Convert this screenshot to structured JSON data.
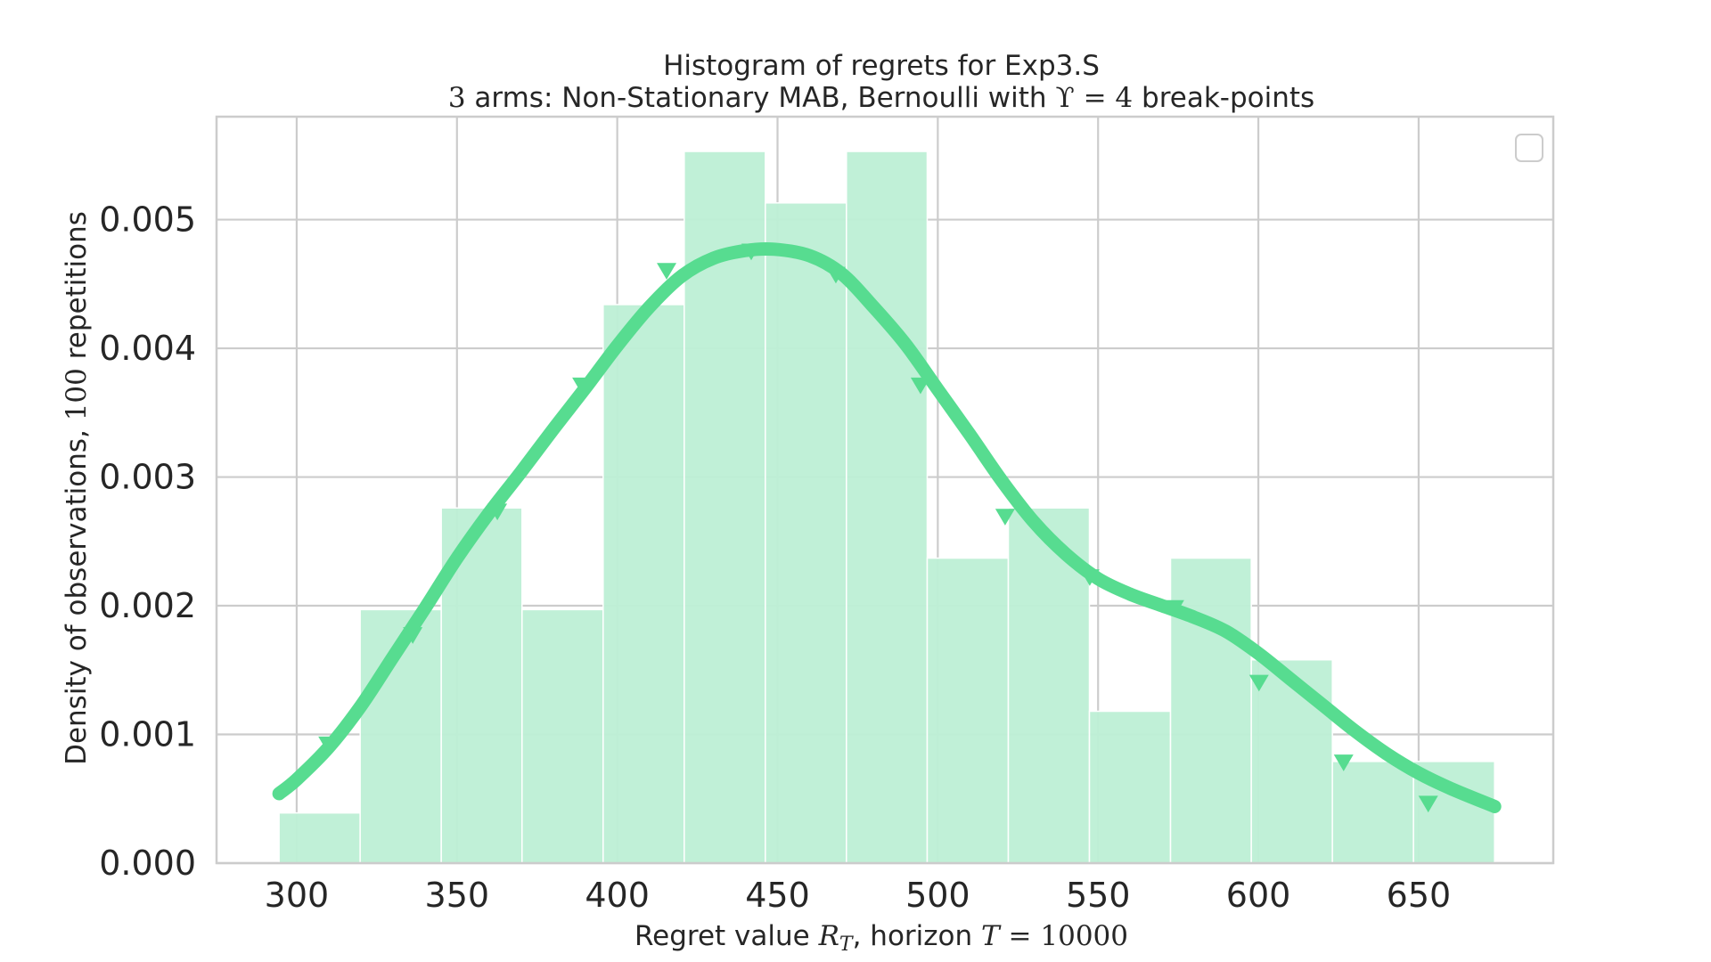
{
  "chart_data": {
    "type": "bar",
    "title": "Histogram of regrets for Exp3.S",
    "subtitle": {
      "arms": "3",
      "text1": " arms: Non-Stationary MAB, Bernoulli with ",
      "upsilon": "ϒ",
      "eq": " = ",
      "num": "4",
      "text2": " break-points"
    },
    "xlabel": {
      "text1": "Regret value ",
      "var": "R",
      "sub": "T",
      "text2": ", horizon ",
      "var2": "T",
      "eq": " = ",
      "num": "10000"
    },
    "ylabel": {
      "text1": "Density of observations, ",
      "num": "100",
      "text2": " repetitions"
    },
    "xlim": [
      275,
      692
    ],
    "ylim": [
      0,
      0.0058
    ],
    "x_ticks": [
      "300",
      "350",
      "400",
      "450",
      "500",
      "550",
      "600",
      "650"
    ],
    "y_ticks": [
      "0.000",
      "0.001",
      "0.002",
      "0.003",
      "0.004",
      "0.005"
    ],
    "bins": [
      {
        "x0": 294.5,
        "x1": 319.8,
        "value": 0.00039
      },
      {
        "x0": 319.8,
        "x1": 345.1,
        "value": 0.00197
      },
      {
        "x0": 345.1,
        "x1": 370.3,
        "value": 0.00276
      },
      {
        "x0": 370.3,
        "x1": 395.6,
        "value": 0.00197
      },
      {
        "x0": 395.6,
        "x1": 420.9,
        "value": 0.00434
      },
      {
        "x0": 420.9,
        "x1": 446.2,
        "value": 0.00553
      },
      {
        "x0": 446.2,
        "x1": 471.5,
        "value": 0.00513
      },
      {
        "x0": 471.5,
        "x1": 496.7,
        "value": 0.00553
      },
      {
        "x0": 496.7,
        "x1": 522.0,
        "value": 0.00237
      },
      {
        "x0": 522.0,
        "x1": 547.3,
        "value": 0.00276
      },
      {
        "x0": 547.3,
        "x1": 572.6,
        "value": 0.00118
      },
      {
        "x0": 572.6,
        "x1": 597.8,
        "value": 0.00237
      },
      {
        "x0": 597.8,
        "x1": 623.1,
        "value": 0.00158
      },
      {
        "x0": 623.1,
        "x1": 648.4,
        "value": 0.00079
      },
      {
        "x0": 648.4,
        "x1": 673.7,
        "value": 0.00079
      }
    ],
    "kde": {
      "x": [
        294.5,
        300,
        310,
        320,
        330,
        340,
        350,
        360,
        370,
        380,
        390,
        400,
        410,
        420,
        430,
        440,
        449,
        460,
        470,
        480,
        490,
        500,
        510,
        520,
        530,
        540,
        550,
        560,
        570,
        580,
        590,
        600,
        610,
        620,
        630,
        640,
        650,
        660,
        673.7
      ],
      "y": [
        0.00054,
        0.00065,
        0.0009,
        0.00122,
        0.0016,
        0.00198,
        0.00237,
        0.00272,
        0.00304,
        0.00337,
        0.00369,
        0.00402,
        0.00432,
        0.00456,
        0.0047,
        0.00476,
        0.00477,
        0.00472,
        0.00458,
        0.00432,
        0.00403,
        0.00368,
        0.00333,
        0.00297,
        0.00265,
        0.0024,
        0.00221,
        0.00209,
        0.002,
        0.00191,
        0.0018,
        0.00163,
        0.00143,
        0.00123,
        0.00103,
        0.00085,
        0.0007,
        0.00058,
        0.00044
      ]
    },
    "markers": {
      "x": [
        309.8,
        336.2,
        362.6,
        389.0,
        415.4,
        441.8,
        468.2,
        494.6,
        521.0,
        547.4,
        573.8,
        600.2,
        626.6,
        653.0
      ],
      "y": [
        0.00093,
        0.00178,
        0.00274,
        0.00372,
        0.00461,
        0.00476,
        0.00458,
        0.00372,
        0.0027,
        0.00223,
        0.00199,
        0.00141,
        0.00079,
        0.00047
      ]
    },
    "colors": {
      "bar": "#bdefd5",
      "bar_edge": "#ffffff",
      "line": "#57dc90",
      "grid": "#cccccc",
      "frame": "#cccccc"
    },
    "grid": true,
    "legend": "top-right, empty"
  }
}
